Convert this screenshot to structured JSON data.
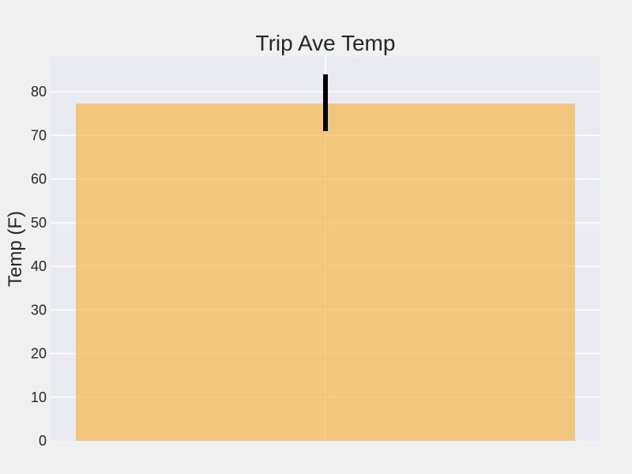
{
  "chart_data": {
    "type": "bar",
    "title": "Trip Ave Temp",
    "xlabel": "",
    "ylabel": "Temp (F)",
    "categories": [
      ""
    ],
    "values": [
      77.3
    ],
    "error": {
      "low": 71,
      "high": 84
    },
    "ylim": [
      0,
      88
    ],
    "yticks": [
      0,
      10,
      20,
      30,
      40,
      50,
      60,
      70,
      80
    ],
    "grid": true,
    "colors": {
      "figure_background": "#f0f0f0",
      "plot_background": "#eaeaf2",
      "grid": "#ffffff",
      "bar": "#f5b84c",
      "bar_alpha": 0.7,
      "error_bar": "#000000"
    }
  }
}
